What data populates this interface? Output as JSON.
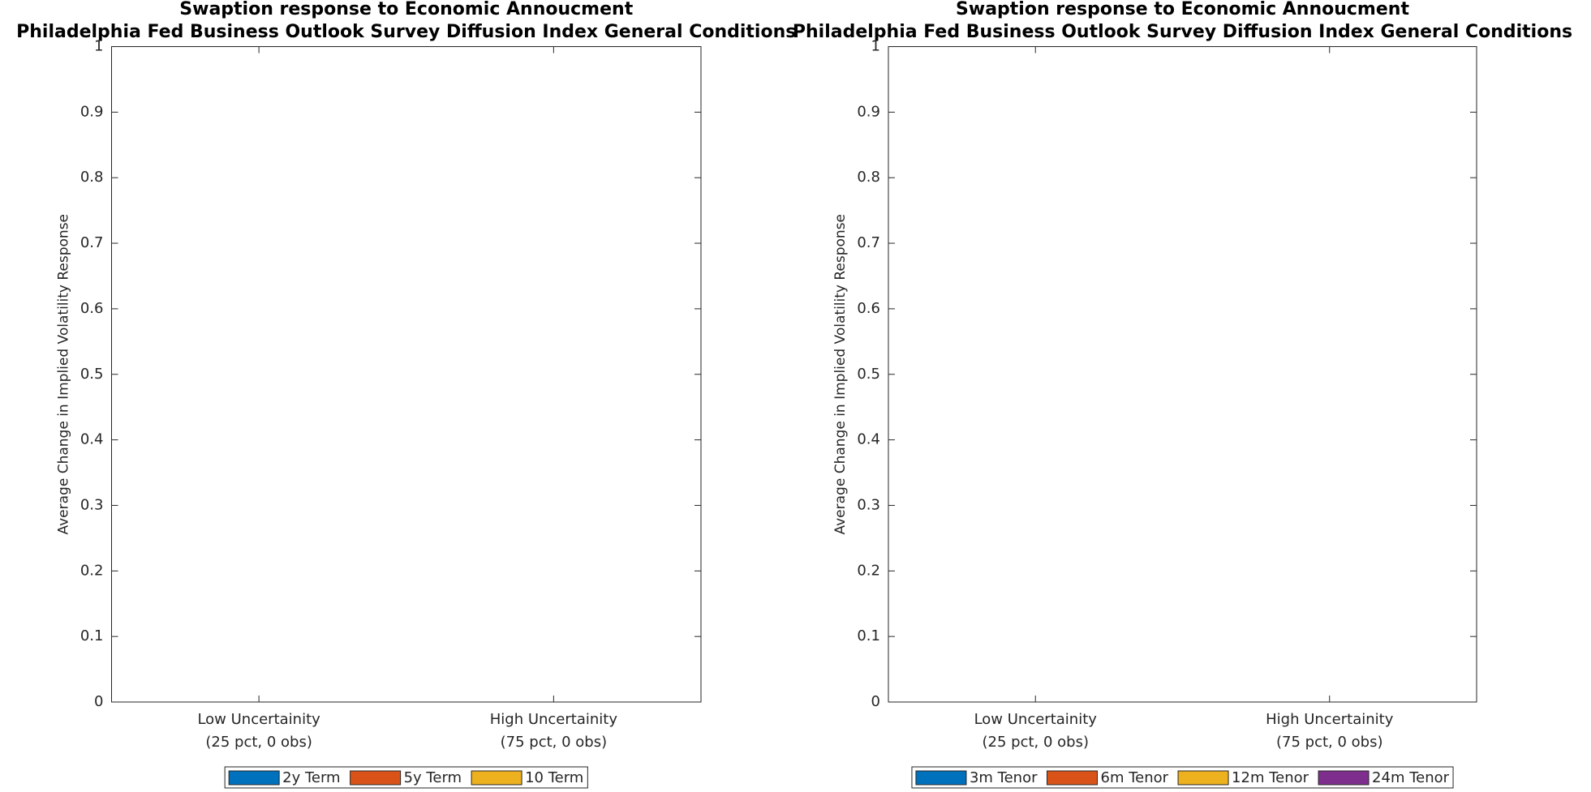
{
  "chart_data": [
    {
      "type": "bar",
      "title": "Swaption response to Economic Annoucment",
      "subtitle": "Philadelphia Fed Business Outlook Survey Diffusion Index General Conditions",
      "ylabel": "Average Change in Implied Volatility Response",
      "categories": [
        [
          "Low Uncertainity",
          "(25 pct, 0 obs)"
        ],
        [
          "High Uncertainity",
          "(75 pct, 0 obs)"
        ]
      ],
      "series": [
        {
          "name": "2y Term",
          "color": "#0072BD",
          "values": [
            null,
            null
          ]
        },
        {
          "name": "5y Term",
          "color": "#D95319",
          "values": [
            null,
            null
          ]
        },
        {
          "name": "10 Term",
          "color": "#EDB120",
          "values": [
            null,
            null
          ]
        }
      ],
      "ylim": [
        0,
        1
      ],
      "yticks": [
        0,
        0.1,
        0.2,
        0.3,
        0.4,
        0.5,
        0.6,
        0.7,
        0.8,
        0.9,
        1
      ],
      "legend": "bottom"
    },
    {
      "type": "bar",
      "title": "Swaption response to Economic Annoucment",
      "subtitle": "Philadelphia Fed Business Outlook Survey Diffusion Index General Conditions",
      "ylabel": "Average Change in Implied Volatility Response",
      "categories": [
        [
          "Low Uncertainity",
          "(25 pct, 0 obs)"
        ],
        [
          "High Uncertainity",
          "(75 pct, 0 obs)"
        ]
      ],
      "series": [
        {
          "name": "3m Tenor",
          "color": "#0072BD",
          "values": [
            null,
            null
          ]
        },
        {
          "name": "6m Tenor",
          "color": "#D95319",
          "values": [
            null,
            null
          ]
        },
        {
          "name": "12m Tenor",
          "color": "#EDB120",
          "values": [
            null,
            null
          ]
        },
        {
          "name": "24m Tenor",
          "color": "#7E2F8E",
          "values": [
            null,
            null
          ]
        }
      ],
      "ylim": [
        0,
        1
      ],
      "yticks": [
        0,
        0.1,
        0.2,
        0.3,
        0.4,
        0.5,
        0.6,
        0.7,
        0.8,
        0.9,
        1
      ],
      "legend": "bottom"
    }
  ]
}
